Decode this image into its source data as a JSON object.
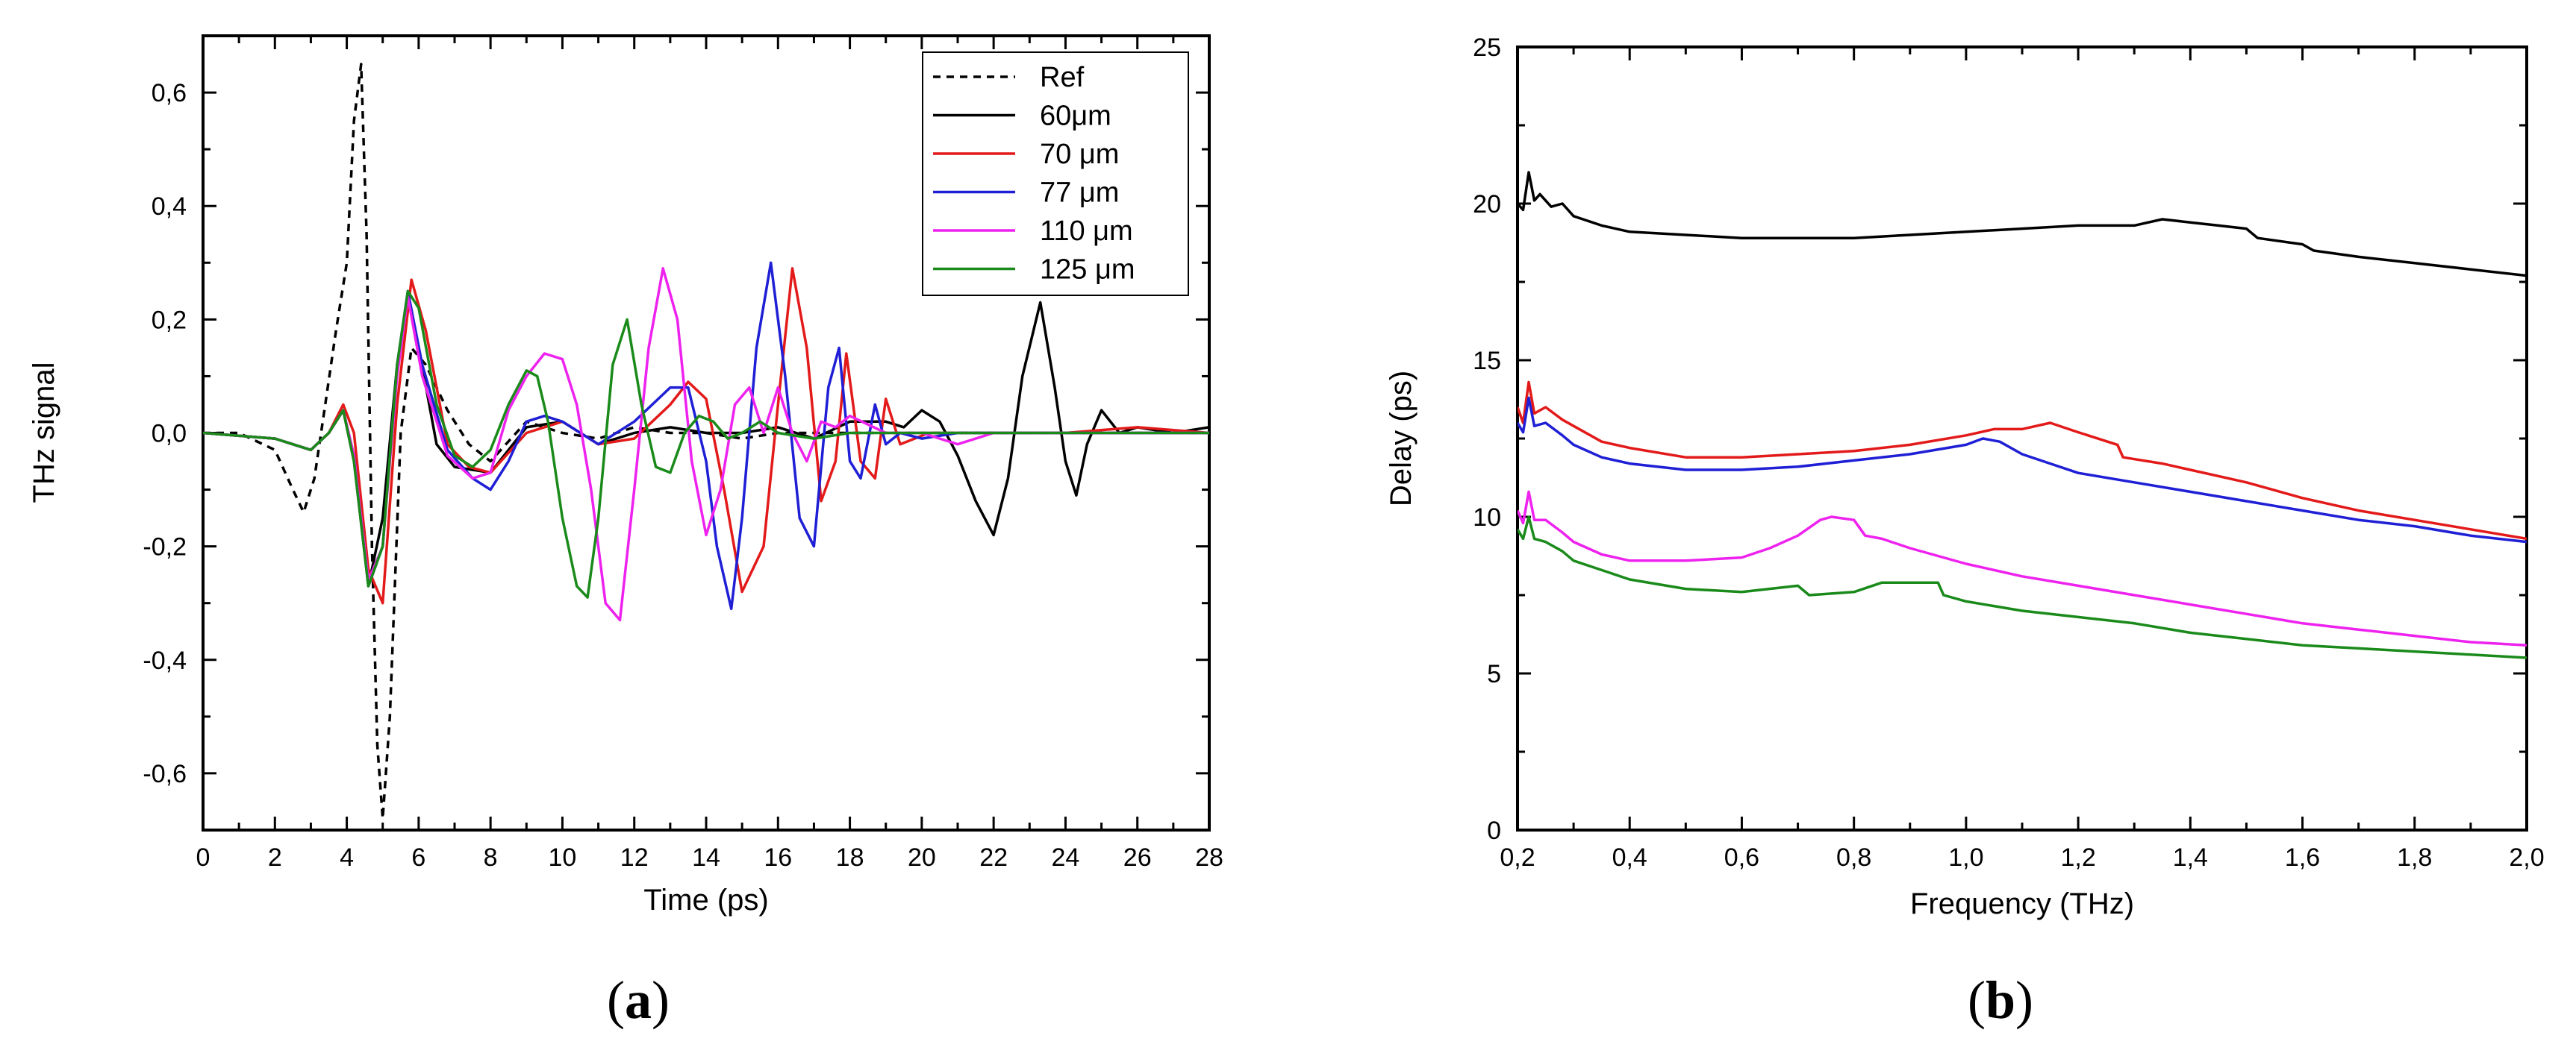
{
  "chart_data": [
    {
      "type": "line",
      "panel_label": "(a)",
      "xlabel": "Time (ps)",
      "ylabel": "THz signal",
      "xlim": [
        0,
        28
      ],
      "ylim": [
        -0.7,
        0.7
      ],
      "x_ticks": [
        0,
        2,
        4,
        6,
        8,
        10,
        12,
        14,
        16,
        18,
        20,
        22,
        24,
        26,
        28
      ],
      "x_tick_labels": [
        "0",
        "2",
        "4",
        "6",
        "8",
        "10",
        "12",
        "14",
        "16",
        "18",
        "20",
        "22",
        "24",
        "26",
        "28"
      ],
      "y_ticks": [
        -0.6,
        -0.4,
        -0.2,
        0.0,
        0.2,
        0.4,
        0.6
      ],
      "y_tick_labels": [
        "-0,6",
        "-0,4",
        "-0,2",
        "0,0",
        "0,2",
        "0,4",
        "0,6"
      ],
      "legend_position": "top-right",
      "series": [
        {
          "name": "Ref",
          "color": "#000000",
          "dash": "dashed",
          "x": [
            0,
            1.0,
            2.0,
            2.5,
            2.8,
            3.1,
            3.4,
            3.7,
            4.0,
            4.2,
            4.4,
            4.55,
            4.7,
            4.85,
            5.0,
            5.2,
            5.5,
            5.8,
            6.2,
            6.8,
            7.4,
            8.0,
            9.0,
            10.0,
            11.0,
            12.0,
            13.0,
            14.0,
            15.0,
            16.0,
            18.0,
            20.0,
            22.0,
            24.0,
            26.0,
            28.0
          ],
          "y": [
            0.0,
            0.0,
            -0.03,
            -0.1,
            -0.14,
            -0.08,
            0.05,
            0.18,
            0.3,
            0.55,
            0.65,
            0.35,
            -0.2,
            -0.55,
            -0.68,
            -0.5,
            0.0,
            0.15,
            0.12,
            0.04,
            -0.02,
            -0.05,
            0.02,
            0.0,
            -0.01,
            0.01,
            0.0,
            0.0,
            -0.01,
            0.0,
            0.0,
            0.0,
            0.0,
            0.0,
            0.0,
            0.0
          ]
        },
        {
          "name": "60μm",
          "color": "#000000",
          "dash": "solid",
          "x": [
            0,
            2.0,
            3.0,
            3.5,
            3.9,
            4.2,
            4.6,
            5.0,
            5.4,
            5.7,
            6.0,
            6.5,
            7.0,
            8.0,
            9.0,
            10.0,
            11.0,
            12.0,
            13.0,
            14.0,
            15.0,
            16.0,
            17.0,
            18.0,
            19.0,
            19.5,
            20.0,
            20.5,
            21.0,
            21.5,
            22.0,
            22.4,
            22.8,
            23.3,
            23.7,
            24.0,
            24.3,
            24.6,
            25.0,
            25.5,
            26.0,
            27.0,
            28.0
          ],
          "y": [
            0.0,
            -0.01,
            -0.03,
            0.0,
            0.04,
            -0.05,
            -0.27,
            -0.15,
            0.12,
            0.24,
            0.15,
            -0.02,
            -0.06,
            -0.07,
            0.01,
            0.02,
            -0.02,
            0.0,
            0.01,
            0.0,
            0.0,
            0.01,
            -0.01,
            0.02,
            0.02,
            0.01,
            0.04,
            0.02,
            -0.04,
            -0.12,
            -0.18,
            -0.08,
            0.1,
            0.23,
            0.08,
            -0.05,
            -0.11,
            -0.02,
            0.04,
            0.0,
            0.01,
            0.0,
            0.01
          ]
        },
        {
          "name": "70 μm",
          "color": "#e31a1a",
          "dash": "solid",
          "x": [
            0,
            2.0,
            3.0,
            3.5,
            3.9,
            4.2,
            4.6,
            5.0,
            5.4,
            5.8,
            6.2,
            6.8,
            7.4,
            8.0,
            9.0,
            10.0,
            11.0,
            12.0,
            12.5,
            13.0,
            13.5,
            14.0,
            14.5,
            15.0,
            15.6,
            16.0,
            16.4,
            16.8,
            17.2,
            17.6,
            17.9,
            18.3,
            18.7,
            19.0,
            19.4,
            19.8,
            20.2,
            21.0,
            22.0,
            24.0,
            26.0,
            28.0
          ],
          "y": [
            0.0,
            -0.01,
            -0.03,
            0.0,
            0.05,
            0.0,
            -0.24,
            -0.3,
            0.05,
            0.27,
            0.18,
            -0.02,
            -0.06,
            -0.07,
            0.0,
            0.02,
            -0.02,
            -0.01,
            0.02,
            0.05,
            0.09,
            0.06,
            -0.1,
            -0.28,
            -0.2,
            0.05,
            0.29,
            0.15,
            -0.12,
            -0.05,
            0.14,
            -0.05,
            -0.08,
            0.06,
            -0.02,
            -0.01,
            0.0,
            0.0,
            0.0,
            0.0,
            0.01,
            0.0
          ]
        },
        {
          "name": "77 μm",
          "color": "#1f1fd6",
          "dash": "solid",
          "x": [
            0,
            2.0,
            3.0,
            3.5,
            3.9,
            4.2,
            4.6,
            5.0,
            5.4,
            5.7,
            6.1,
            6.8,
            7.5,
            8.0,
            8.5,
            9.0,
            9.5,
            10.0,
            11.0,
            12.0,
            12.5,
            13.0,
            13.5,
            14.0,
            14.3,
            14.7,
            15.0,
            15.4,
            15.8,
            16.2,
            16.6,
            17.0,
            17.4,
            17.7,
            18.0,
            18.3,
            18.7,
            19.0,
            19.4,
            20.0,
            21.0,
            22.0,
            24.0,
            26.0,
            28.0
          ],
          "y": [
            0.0,
            -0.01,
            -0.03,
            0.0,
            0.04,
            -0.04,
            -0.27,
            -0.2,
            0.12,
            0.25,
            0.12,
            -0.03,
            -0.08,
            -0.1,
            -0.05,
            0.02,
            0.03,
            0.02,
            -0.02,
            0.02,
            0.05,
            0.08,
            0.08,
            -0.05,
            -0.2,
            -0.31,
            -0.15,
            0.15,
            0.3,
            0.1,
            -0.15,
            -0.2,
            0.08,
            0.15,
            -0.05,
            -0.08,
            0.05,
            -0.02,
            0.0,
            -0.01,
            0.0,
            0.0,
            0.0,
            0.0,
            0.0
          ]
        },
        {
          "name": "110 μm",
          "color": "#ee22ee",
          "dash": "solid",
          "x": [
            0,
            2.0,
            3.0,
            3.5,
            3.9,
            4.2,
            4.6,
            5.0,
            5.4,
            5.7,
            6.1,
            6.8,
            7.5,
            8.0,
            8.5,
            9.0,
            9.5,
            10.0,
            10.4,
            10.8,
            11.2,
            11.6,
            12.0,
            12.4,
            12.8,
            13.2,
            13.6,
            14.0,
            14.4,
            14.8,
            15.2,
            15.6,
            16.0,
            16.4,
            16.8,
            17.2,
            17.6,
            18.0,
            19.0,
            20.0,
            21.0,
            22.0,
            24.0,
            26.0,
            28.0
          ],
          "y": [
            0.0,
            -0.01,
            -0.03,
            0.0,
            0.04,
            -0.04,
            -0.26,
            -0.2,
            0.1,
            0.24,
            0.1,
            -0.04,
            -0.08,
            -0.07,
            0.04,
            0.1,
            0.14,
            0.13,
            0.05,
            -0.1,
            -0.3,
            -0.33,
            -0.1,
            0.15,
            0.29,
            0.2,
            -0.05,
            -0.18,
            -0.1,
            0.05,
            0.08,
            0.0,
            0.08,
            0.0,
            -0.05,
            0.02,
            0.01,
            0.03,
            0.0,
            0.0,
            -0.02,
            0.0,
            0.0,
            0.0,
            0.0
          ]
        },
        {
          "name": "125 μm",
          "color": "#1a8a1a",
          "dash": "solid",
          "x": [
            0,
            2.0,
            3.0,
            3.5,
            3.9,
            4.2,
            4.6,
            5.0,
            5.4,
            5.7,
            6.0,
            6.5,
            7.0,
            7.5,
            8.0,
            8.5,
            9.0,
            9.3,
            9.6,
            10.0,
            10.4,
            10.7,
            11.0,
            11.4,
            11.8,
            12.2,
            12.6,
            13.0,
            13.4,
            13.8,
            14.2,
            14.6,
            15.0,
            15.5,
            16.0,
            17.0,
            18.0,
            19.0,
            20.0,
            22.0,
            24.0,
            26.0,
            28.0
          ],
          "y": [
            0.0,
            -0.01,
            -0.03,
            0.0,
            0.04,
            -0.05,
            -0.27,
            -0.2,
            0.12,
            0.25,
            0.22,
            0.05,
            -0.04,
            -0.06,
            -0.03,
            0.05,
            0.11,
            0.1,
            0.02,
            -0.15,
            -0.27,
            -0.29,
            -0.15,
            0.12,
            0.2,
            0.05,
            -0.06,
            -0.07,
            0.0,
            0.03,
            0.02,
            -0.01,
            0.0,
            0.02,
            0.0,
            -0.01,
            0.0,
            0.0,
            0.0,
            0.0,
            0.0,
            0.0,
            0.0
          ]
        }
      ]
    },
    {
      "type": "line",
      "panel_label": "(b)",
      "xlabel": "Frequency (THz)",
      "ylabel": "Delay (ps)",
      "xlim": [
        0.2,
        2.0
      ],
      "ylim": [
        0,
        25
      ],
      "x_ticks": [
        0.2,
        0.4,
        0.6,
        0.8,
        1.0,
        1.2,
        1.4,
        1.6,
        1.8,
        2.0
      ],
      "x_tick_labels": [
        "0,2",
        "0,4",
        "0,6",
        "0,8",
        "1,0",
        "1,2",
        "1,4",
        "1,6",
        "1,8",
        "2,0"
      ],
      "y_ticks": [
        0,
        5,
        10,
        15,
        20,
        25
      ],
      "y_tick_labels": [
        "0",
        "5",
        "10",
        "15",
        "20",
        "25"
      ],
      "series": [
        {
          "name": "60μm",
          "color": "#000000",
          "x": [
            0.2,
            0.21,
            0.22,
            0.23,
            0.24,
            0.26,
            0.28,
            0.3,
            0.35,
            0.4,
            0.5,
            0.6,
            0.7,
            0.8,
            0.9,
            1.0,
            1.1,
            1.2,
            1.3,
            1.35,
            1.4,
            1.45,
            1.5,
            1.52,
            1.6,
            1.62,
            1.7,
            1.8,
            1.9,
            2.0
          ],
          "y": [
            20.0,
            19.8,
            21.0,
            20.1,
            20.3,
            19.9,
            20.0,
            19.6,
            19.3,
            19.1,
            19.0,
            18.9,
            18.9,
            18.9,
            19.0,
            19.1,
            19.2,
            19.3,
            19.3,
            19.5,
            19.4,
            19.3,
            19.2,
            18.9,
            18.7,
            18.5,
            18.3,
            18.1,
            17.9,
            17.7
          ]
        },
        {
          "name": "70 μm",
          "color": "#e31a1a",
          "x": [
            0.2,
            0.21,
            0.22,
            0.23,
            0.25,
            0.28,
            0.3,
            0.35,
            0.4,
            0.5,
            0.6,
            0.7,
            0.8,
            0.9,
            1.0,
            1.05,
            1.1,
            1.15,
            1.2,
            1.27,
            1.28,
            1.35,
            1.4,
            1.5,
            1.6,
            1.7,
            1.8,
            1.9,
            2.0
          ],
          "y": [
            13.5,
            13.0,
            14.3,
            13.3,
            13.5,
            13.1,
            12.9,
            12.4,
            12.2,
            11.9,
            11.9,
            12.0,
            12.1,
            12.3,
            12.6,
            12.8,
            12.8,
            13.0,
            12.7,
            12.3,
            11.9,
            11.7,
            11.5,
            11.1,
            10.6,
            10.2,
            9.9,
            9.6,
            9.3
          ]
        },
        {
          "name": "77 μm",
          "color": "#1f1fd6",
          "x": [
            0.2,
            0.21,
            0.22,
            0.23,
            0.25,
            0.28,
            0.3,
            0.35,
            0.4,
            0.5,
            0.6,
            0.7,
            0.8,
            0.9,
            1.0,
            1.03,
            1.06,
            1.1,
            1.15,
            1.2,
            1.3,
            1.4,
            1.5,
            1.6,
            1.7,
            1.8,
            1.9,
            2.0
          ],
          "y": [
            13.0,
            12.7,
            13.8,
            12.9,
            13.0,
            12.6,
            12.3,
            11.9,
            11.7,
            11.5,
            11.5,
            11.6,
            11.8,
            12.0,
            12.3,
            12.5,
            12.4,
            12.0,
            11.7,
            11.4,
            11.1,
            10.8,
            10.5,
            10.2,
            9.9,
            9.7,
            9.4,
            9.2
          ]
        },
        {
          "name": "110 μm",
          "color": "#ee22ee",
          "x": [
            0.2,
            0.21,
            0.22,
            0.23,
            0.25,
            0.28,
            0.3,
            0.35,
            0.4,
            0.5,
            0.6,
            0.65,
            0.7,
            0.74,
            0.76,
            0.8,
            0.82,
            0.85,
            0.9,
            1.0,
            1.1,
            1.2,
            1.3,
            1.4,
            1.5,
            1.6,
            1.7,
            1.8,
            1.9,
            2.0
          ],
          "y": [
            10.2,
            9.8,
            10.8,
            9.9,
            9.9,
            9.5,
            9.2,
            8.8,
            8.6,
            8.6,
            8.7,
            9.0,
            9.4,
            9.9,
            10.0,
            9.9,
            9.4,
            9.3,
            9.0,
            8.5,
            8.1,
            7.8,
            7.5,
            7.2,
            6.9,
            6.6,
            6.4,
            6.2,
            6.0,
            5.9
          ]
        },
        {
          "name": "125 μm",
          "color": "#1a8a1a",
          "x": [
            0.2,
            0.21,
            0.22,
            0.23,
            0.25,
            0.28,
            0.3,
            0.35,
            0.4,
            0.5,
            0.6,
            0.7,
            0.72,
            0.8,
            0.85,
            0.9,
            0.95,
            0.96,
            1.0,
            1.1,
            1.2,
            1.3,
            1.4,
            1.5,
            1.6,
            1.7,
            1.8,
            1.9,
            2.0
          ],
          "y": [
            9.6,
            9.3,
            10.0,
            9.3,
            9.2,
            8.9,
            8.6,
            8.3,
            8.0,
            7.7,
            7.6,
            7.8,
            7.5,
            7.6,
            7.9,
            7.9,
            7.9,
            7.5,
            7.3,
            7.0,
            6.8,
            6.6,
            6.3,
            6.1,
            5.9,
            5.8,
            5.7,
            5.6,
            5.5
          ]
        }
      ]
    }
  ]
}
